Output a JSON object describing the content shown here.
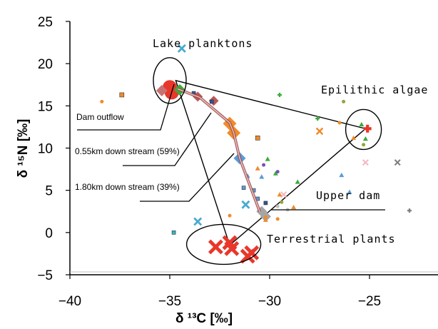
{
  "chart_data": {
    "type": "scatter",
    "title": "",
    "xlabel": "δ ¹³C [‰]",
    "ylabel": "δ ¹⁵N [‰]",
    "xlim": [
      -40,
      -20
    ],
    "ylim": [
      -5,
      25
    ],
    "x_ticks": [
      "−40",
      "−35",
      "−30",
      "−25"
    ],
    "y_ticks": [
      "−5",
      "0",
      "5",
      "10",
      "15",
      "20",
      "25"
    ],
    "grid": false,
    "legend": "none",
    "annotations": {
      "lake": "Lake planktons",
      "epilithic": "Epilithic algae",
      "dam_outflow": "Dam outflow",
      "down055": "0.55km down stream (59%)",
      "down180": "1.80km down stream (39%)",
      "upper_dam": "Upper dam",
      "terrestrial": "Terrestrial plants"
    },
    "mixing_triangle": [
      {
        "x": -34.7,
        "y": 18.0
      },
      {
        "x": -25.2,
        "y": 12.3
      },
      {
        "x": -32.0,
        "y": -1.5
      }
    ],
    "ellipses": [
      {
        "name": "lake",
        "cx": -35.0,
        "cy": 18.0
      },
      {
        "name": "epilithic",
        "cx": -25.3,
        "cy": 12.2
      },
      {
        "name": "terrestrial",
        "cx": -32.3,
        "cy": -1.4
      }
    ],
    "path_line": [
      {
        "x": -34.6,
        "y": 17.0
      },
      {
        "x": -33.5,
        "y": 16.0
      },
      {
        "x": -32.0,
        "y": 13.0
      },
      {
        "x": -31.8,
        "y": 11.8
      },
      {
        "x": -31.5,
        "y": 8.8
      },
      {
        "x": -30.5,
        "y": 2.5
      }
    ],
    "series": [
      {
        "marker": "circle",
        "color": "#e8372b",
        "size": 20,
        "points": [
          [
            -35.0,
            17.2
          ],
          [
            -34.9,
            16.6
          ]
        ]
      },
      {
        "marker": "diamond",
        "color": "#c97172",
        "size": 16,
        "points": [
          [
            -35.4,
            16.8
          ]
        ]
      },
      {
        "marker": "diamond",
        "color": "#3aaa3a",
        "size": 16,
        "points": [
          [
            -34.5,
            16.9
          ]
        ]
      },
      {
        "marker": "diamond",
        "color": "#b8585a",
        "size": 14,
        "points": [
          [
            -33.6,
            16.1
          ],
          [
            -32.8,
            15.6
          ]
        ]
      },
      {
        "marker": "diamond",
        "color": "#ef8b2c",
        "size": 19,
        "points": [
          [
            -32.0,
            12.9
          ],
          [
            -31.8,
            11.8
          ]
        ]
      },
      {
        "marker": "diamond",
        "color": "#5b9bd5",
        "size": 17,
        "points": [
          [
            -31.5,
            8.8
          ]
        ]
      },
      {
        "marker": "diamond",
        "color": "#a5a5a5",
        "size": 15,
        "points": [
          [
            -30.4,
            2.5
          ],
          [
            -30.2,
            1.9
          ]
        ]
      },
      {
        "marker": "x",
        "color": "#e8372b",
        "size": 14,
        "points": [
          [
            -32.7,
            -1.7
          ],
          [
            -32.0,
            -1.2
          ],
          [
            -31.9,
            -1.9
          ],
          [
            -30.9,
            -2.4
          ],
          [
            -31.1,
            -2.8
          ]
        ]
      },
      {
        "marker": "x",
        "color": "#48aad0",
        "size": 8,
        "points": [
          [
            -34.4,
            21.8
          ],
          [
            -33.6,
            1.3
          ],
          [
            -31.2,
            3.3
          ]
        ]
      },
      {
        "marker": "plus",
        "color": "#e8372b",
        "size": 11,
        "points": [
          [
            -25.1,
            12.3
          ]
        ]
      },
      {
        "marker": "x",
        "color": "#ef8b2c",
        "size": 7,
        "points": [
          [
            -27.5,
            12.0
          ]
        ]
      },
      {
        "marker": "x",
        "color": "#f5b7c4",
        "size": 6,
        "points": [
          [
            -25.2,
            8.3
          ],
          [
            -29.3,
            4.5
          ]
        ]
      },
      {
        "marker": "x",
        "color": "#808080",
        "size": 6,
        "points": [
          [
            -23.6,
            8.3
          ]
        ]
      },
      {
        "marker": "plus",
        "color": "#808080",
        "size": 6,
        "points": [
          [
            -23.0,
            2.6
          ]
        ]
      },
      {
        "marker": "plus",
        "color": "#3aaa3a",
        "size": 6,
        "points": [
          [
            -29.5,
            16.3
          ],
          [
            -27.6,
            13.5
          ]
        ]
      },
      {
        "marker": "triangle",
        "color": "#3aaa3a",
        "size": 7,
        "points": [
          [
            -30.1,
            8.7
          ],
          [
            -29.7,
            7.0
          ],
          [
            -28.6,
            6.0
          ],
          [
            -25.2,
            11.1
          ],
          [
            -25.4,
            12.8
          ]
        ]
      },
      {
        "marker": "triangle",
        "color": "#ef8b2c",
        "size": 7,
        "points": [
          [
            -30.6,
            7.6
          ],
          [
            -29.5,
            4.5
          ],
          [
            -28.8,
            3.0
          ],
          [
            -25.8,
            11.2
          ],
          [
            -30.2,
            1.5
          ]
        ]
      },
      {
        "marker": "triangle",
        "color": "#5b9bd5",
        "size": 7,
        "points": [
          [
            -31.1,
            6.7
          ],
          [
            -30.4,
            6.6
          ],
          [
            -26.4,
            6.8
          ],
          [
            -26.0,
            4.8
          ]
        ]
      },
      {
        "marker": "square",
        "color": "#ef8b2c",
        "size": 6,
        "points": [
          [
            -37.4,
            16.3
          ],
          [
            -30.6,
            11.2
          ]
        ]
      },
      {
        "marker": "square",
        "color": "#2f5597",
        "size": 5,
        "points": [
          [
            -33.8,
            16.5
          ],
          [
            -32.9,
            15.5
          ],
          [
            -30.2,
            3.5
          ]
        ]
      },
      {
        "marker": "square",
        "color": "#5b9bd5",
        "size": 5,
        "points": [
          [
            -31.3,
            5.3
          ],
          [
            -30.8,
            5.0
          ],
          [
            -30.6,
            4.0
          ]
        ]
      },
      {
        "marker": "square",
        "color": "#33b5c5",
        "size": 5,
        "points": [
          [
            -34.8,
            0.0
          ]
        ]
      },
      {
        "marker": "circle",
        "color": "#ef8b2c",
        "size": 5,
        "points": [
          [
            -38.4,
            15.5
          ],
          [
            -30.2,
            1.8
          ],
          [
            -29.6,
            1.6
          ],
          [
            -26.5,
            13.0
          ],
          [
            -32.0,
            2.0
          ]
        ]
      },
      {
        "marker": "circle",
        "color": "#8fa63a",
        "size": 5,
        "points": [
          [
            -26.3,
            15.5
          ],
          [
            -25.3,
            10.4
          ],
          [
            -29.4,
            3.6
          ]
        ]
      },
      {
        "marker": "circle",
        "color": "#7b4fb2",
        "size": 5,
        "points": [
          [
            -30.3,
            8.0
          ],
          [
            -29.6,
            7.2
          ]
        ]
      },
      {
        "marker": "circle",
        "color": "#c0c0c0",
        "size": 5,
        "points": [
          [
            -29.6,
            3.1
          ],
          [
            -29.1,
            2.7
          ]
        ]
      }
    ]
  }
}
